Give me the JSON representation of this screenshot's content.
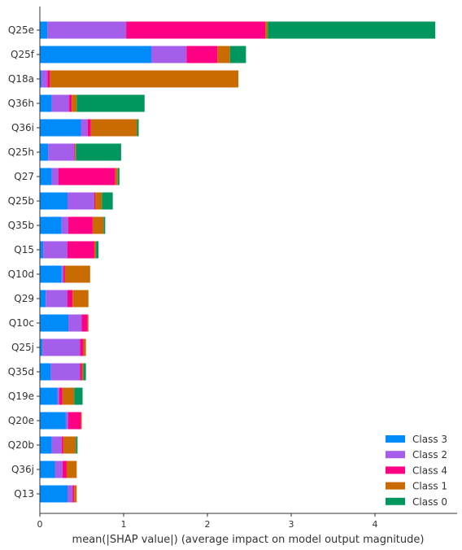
{
  "chart_data": {
    "type": "bar",
    "orientation": "horizontal",
    "stacked": true,
    "categories": [
      "Q25e",
      "Q25f",
      "Q18a",
      "Q36h",
      "Q36i",
      "Q25h",
      "Q27",
      "Q25b",
      "Q35b",
      "Q15",
      "Q10d",
      "Q29",
      "Q10c",
      "Q25j",
      "Q35d",
      "Q19e",
      "Q20e",
      "Q20b",
      "Q36j",
      "Q13"
    ],
    "series": [
      {
        "name": "Class 3",
        "color": "#008bfb",
        "values": [
          0.09,
          1.33,
          0.02,
          0.14,
          0.49,
          0.1,
          0.14,
          0.33,
          0.26,
          0.04,
          0.26,
          0.07,
          0.34,
          0.03,
          0.13,
          0.21,
          0.31,
          0.14,
          0.18,
          0.33
        ]
      },
      {
        "name": "Class 2",
        "color": "#a45ee9",
        "values": [
          0.94,
          0.42,
          0.07,
          0.21,
          0.08,
          0.31,
          0.08,
          0.32,
          0.08,
          0.29,
          0.02,
          0.26,
          0.16,
          0.45,
          0.35,
          0.02,
          0.03,
          0.12,
          0.09,
          0.06
        ]
      },
      {
        "name": "Class 4",
        "color": "#ff0084",
        "values": [
          1.66,
          0.37,
          0.03,
          0.03,
          0.04,
          0.01,
          0.68,
          0.01,
          0.29,
          0.32,
          0.02,
          0.06,
          0.07,
          0.04,
          0.02,
          0.04,
          0.15,
          0.02,
          0.05,
          0.02
        ]
      },
      {
        "name": "Class 1",
        "color": "#c96b00",
        "values": [
          0.03,
          0.15,
          2.25,
          0.06,
          0.55,
          0.01,
          0.03,
          0.08,
          0.13,
          0.02,
          0.3,
          0.19,
          0.01,
          0.03,
          0.02,
          0.14,
          0.01,
          0.15,
          0.12,
          0.03
        ]
      },
      {
        "name": "Class 0",
        "color": "#00975e",
        "values": [
          2.0,
          0.19,
          0.0,
          0.81,
          0.02,
          0.54,
          0.02,
          0.13,
          0.02,
          0.03,
          0.0,
          0.0,
          0.0,
          0.0,
          0.03,
          0.1,
          0.0,
          0.02,
          0.0,
          0.0
        ]
      }
    ],
    "stack_order": [
      "Class 3",
      "Class 2",
      "Class 4",
      "Class 1",
      "Class 0"
    ],
    "legend_order": [
      "Class 3",
      "Class 2",
      "Class 4",
      "Class 1",
      "Class 0"
    ],
    "xlabel": "mean(|SHAP value|) (average impact on model output magnitude)",
    "xlim": [
      0,
      4.9
    ],
    "xticks": [
      0,
      1,
      2,
      3,
      4
    ],
    "grid": false,
    "legend_position": "bottom-right"
  }
}
